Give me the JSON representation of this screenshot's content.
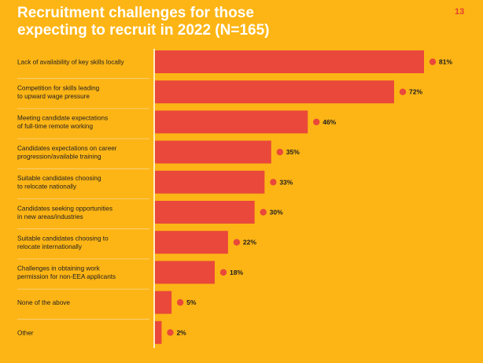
{
  "header": {
    "title_line1": "Recruitment challenges for those",
    "title_line2": "expecting to recruit in 2022 (N=165)",
    "page_number": "13"
  },
  "colors": {
    "background": "#FDB515",
    "bar": "#E9483A",
    "dot": "#E9483A",
    "separator": "#F6D58A",
    "axis": "#FFFFFF"
  },
  "chart_data": {
    "type": "bar",
    "orientation": "horizontal",
    "title": "Recruitment challenges for those expecting to recruit in 2022 (N=165)",
    "categories": [
      [
        "Lack of availability of key skills locally"
      ],
      [
        "Competition for skills leading",
        "to upward wage pressure"
      ],
      [
        "Meeting candidate expectations",
        "of full-time remote working"
      ],
      [
        "Candidates expectations on career",
        "progression/available training"
      ],
      [
        "Suitable candidates choosing",
        "to relocate nationally"
      ],
      [
        "Candidates seeking opportunities",
        "in new areas/industries"
      ],
      [
        "Suitable candidates choosing to",
        "relocate internationally"
      ],
      [
        "Challenges in obtaining work",
        "permission for non-EEA applicants"
      ],
      [
        "None of the above"
      ],
      [
        "Other"
      ]
    ],
    "values": [
      81,
      72,
      46,
      35,
      33,
      30,
      22,
      18,
      5,
      2
    ],
    "value_labels": [
      "81%",
      "72%",
      "46%",
      "35%",
      "33%",
      "30%",
      "22%",
      "18%",
      "5%",
      "2%"
    ],
    "xlim": [
      0,
      100
    ],
    "grid": false,
    "legend": "none"
  }
}
